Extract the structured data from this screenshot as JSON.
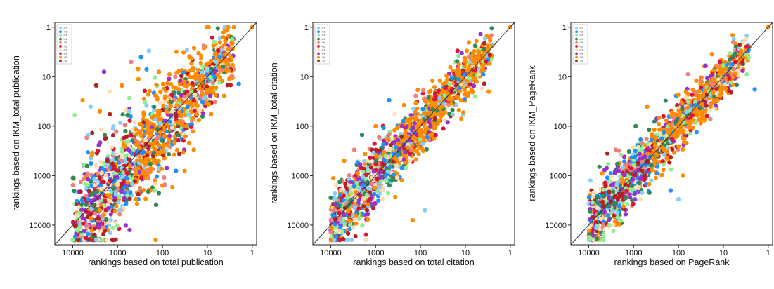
{
  "chart_data": [
    {
      "type": "scatter",
      "xlabel": "rankings based on total publication",
      "ylabel": "rankings based on IKM_total publication",
      "x_scale": "log-reversed",
      "y_scale": "log-reversed",
      "xlim": [
        25000,
        0.8
      ],
      "ylim": [
        25000,
        0.8
      ],
      "x_ticks": [
        "10000",
        "1000",
        "100",
        "10",
        "1"
      ],
      "y_ticks": [
        "1",
        "10",
        "100",
        "1000",
        "10000"
      ],
      "reference_line": "y = x",
      "legend": {
        "placement": "top-left",
        "entries": [
          "-01",
          "-02",
          "-03",
          "-04",
          "-05",
          "-06",
          "-07",
          "-08",
          "-09",
          "-10"
        ]
      },
      "series_colors": [
        "#87cefa",
        "#1e90ff",
        "#90ee90",
        "#2e8b57",
        "#f08080",
        "#dc143c",
        "#ffdead",
        "#9932cc",
        "#ff8c00",
        "#b22222"
      ],
      "points": [
        [
          1,
          1
        ],
        [
          2,
          14
        ],
        [
          7,
          2
        ],
        [
          4,
          1.9
        ],
        [
          12,
          2.4
        ],
        [
          20,
          30
        ],
        [
          25,
          4
        ],
        [
          40,
          12
        ],
        [
          70,
          9
        ],
        [
          120,
          8
        ],
        [
          200,
          3
        ],
        [
          300,
          4
        ],
        [
          350,
          7
        ],
        [
          600,
          60
        ],
        [
          500,
          5
        ],
        [
          800,
          15
        ],
        [
          1500,
          20
        ],
        [
          2000,
          8
        ],
        [
          2500,
          50
        ],
        [
          3000,
          15
        ],
        [
          4000,
          40
        ],
        [
          6000,
          30
        ],
        [
          9000,
          60
        ],
        [
          100,
          200
        ],
        [
          300,
          500
        ],
        [
          600,
          900
        ],
        [
          1000,
          1500
        ],
        [
          1500,
          2500
        ],
        [
          2500,
          5000
        ],
        [
          4000,
          6000
        ],
        [
          20,
          300
        ],
        [
          50,
          800
        ],
        [
          150,
          2000
        ],
        [
          400,
          3000
        ],
        [
          900,
          6000
        ]
      ],
      "density_trend": "points widely spread above the diagonal, wedge opening toward higher ranks"
    },
    {
      "type": "scatter",
      "xlabel": "rankings based on total citation",
      "ylabel": "rankings based on IKM_total citation",
      "x_scale": "log-reversed",
      "y_scale": "log-reversed",
      "xlim": [
        25000,
        0.8
      ],
      "ylim": [
        25000,
        0.8
      ],
      "x_ticks": [
        "10000",
        "1000",
        "100",
        "10",
        "1"
      ],
      "y_ticks": [
        "1",
        "10",
        "100",
        "1000",
        "10000"
      ],
      "reference_line": "y = x",
      "legend": {
        "placement": "top-left",
        "entries": [
          "-01",
          "-02",
          "-03",
          "-04",
          "-05",
          "-06",
          "-07",
          "-08",
          "-09",
          "-10"
        ]
      },
      "series_colors": [
        "#87cefa",
        "#1e90ff",
        "#90ee90",
        "#2e8b57",
        "#f08080",
        "#dc143c",
        "#ffdead",
        "#9932cc",
        "#ff8c00",
        "#b22222"
      ],
      "points": [
        [
          1,
          1
        ],
        [
          4,
          9
        ],
        [
          6,
          25
        ],
        [
          3,
          20
        ],
        [
          8,
          4
        ],
        [
          15,
          3
        ],
        [
          30,
          20
        ],
        [
          60,
          100
        ],
        [
          200,
          80
        ],
        [
          150,
          8000
        ],
        [
          80,
          5000
        ],
        [
          500,
          30
        ],
        [
          1000,
          100
        ],
        [
          2000,
          150
        ],
        [
          3000,
          300
        ],
        [
          5000,
          500
        ],
        [
          700,
          3000
        ],
        [
          1500,
          6000
        ]
      ],
      "density_trend": "points clustered closely around the diagonal"
    },
    {
      "type": "scatter",
      "xlabel": "rankings based on PageRank",
      "ylabel": "rankings based on IKM_PageRank",
      "x_scale": "log-reversed",
      "y_scale": "log-reversed",
      "xlim": [
        25000,
        0.8
      ],
      "ylim": [
        25000,
        0.8
      ],
      "x_ticks": [
        "10000",
        "1000",
        "100",
        "10",
        "1"
      ],
      "y_ticks": [
        "1",
        "10",
        "100",
        "1000",
        "10000"
      ],
      "reference_line": "y = x",
      "legend": {
        "placement": "top-left",
        "entries": [
          "-01",
          "-02",
          "-03",
          "-04",
          "-05",
          "-06",
          "-07",
          "-08",
          "-09",
          "-10"
        ]
      },
      "series_colors": [
        "#87cefa",
        "#1e90ff",
        "#90ee90",
        "#2e8b57",
        "#f08080",
        "#dc143c",
        "#ffdead",
        "#9932cc",
        "#ff8c00",
        "#b22222"
      ],
      "points": [
        [
          1,
          1
        ],
        [
          2,
          18
        ],
        [
          3,
          9
        ],
        [
          4,
          3
        ],
        [
          6,
          2
        ],
        [
          12,
          5
        ],
        [
          18,
          3.5
        ],
        [
          25,
          6
        ],
        [
          40,
          12
        ],
        [
          80,
          1000
        ],
        [
          100,
          3000
        ],
        [
          150,
          2000
        ],
        [
          500,
          40
        ],
        [
          900,
          100
        ],
        [
          2500,
          300
        ],
        [
          5000,
          900
        ],
        [
          700,
          3000
        ],
        [
          1500,
          6000
        ]
      ],
      "density_trend": "points clustered around the diagonal, tighter than total publication"
    }
  ]
}
